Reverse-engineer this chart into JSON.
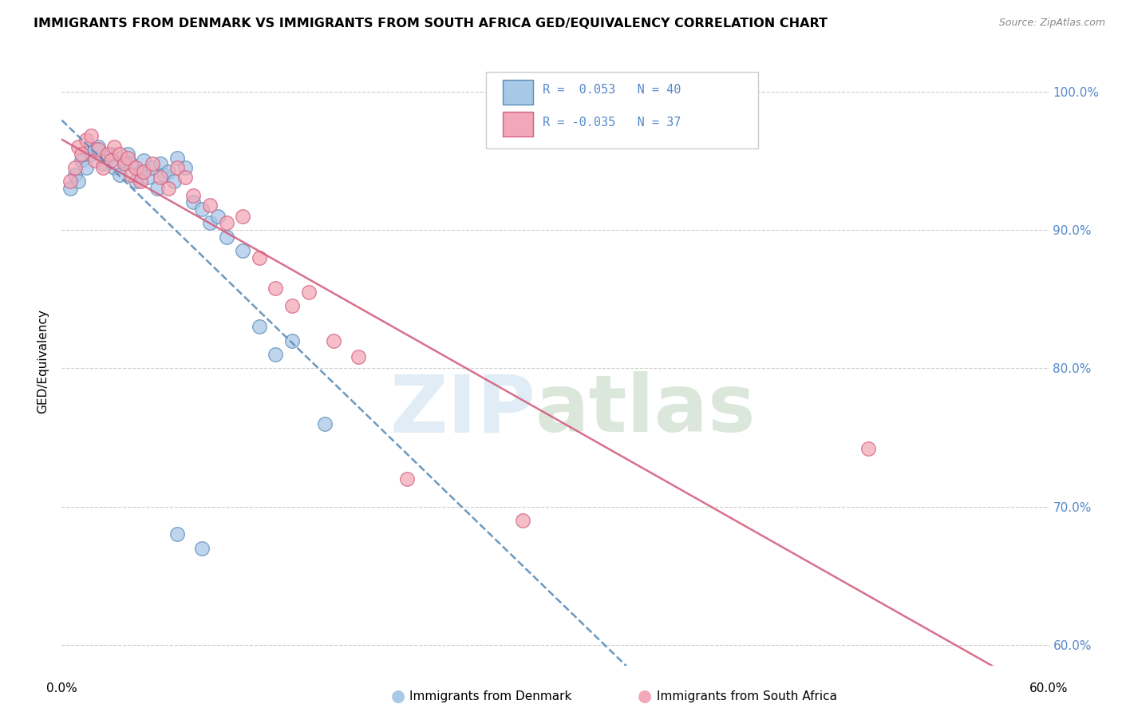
{
  "title": "IMMIGRANTS FROM DENMARK VS IMMIGRANTS FROM SOUTH AFRICA GED/EQUIVALENCY CORRELATION CHART",
  "source": "Source: ZipAtlas.com",
  "ylabel": "GED/Equivalency",
  "ytick_labels": [
    "100.0%",
    "90.0%",
    "80.0%",
    "70.0%",
    "60.0%"
  ],
  "ytick_values": [
    1.0,
    0.9,
    0.8,
    0.7,
    0.6
  ],
  "xlim": [
    0.0,
    0.6
  ],
  "ylim": [
    0.585,
    1.025
  ],
  "color_blue": "#A8C8E8",
  "color_pink": "#F2A8B8",
  "line_blue": "#5B8DB8",
  "line_pink": "#D46080",
  "denmark_x": [
    0.005,
    0.008,
    0.01,
    0.012,
    0.015,
    0.018,
    0.02,
    0.022,
    0.025,
    0.028,
    0.03,
    0.032,
    0.035,
    0.038,
    0.04,
    0.042,
    0.045,
    0.048,
    0.05,
    0.052,
    0.055,
    0.058,
    0.06,
    0.062,
    0.065,
    0.068,
    0.07,
    0.075,
    0.08,
    0.085,
    0.09,
    0.095,
    0.1,
    0.11,
    0.12,
    0.13,
    0.14,
    0.16,
    0.07,
    0.085
  ],
  "denmark_y": [
    0.93,
    0.94,
    0.935,
    0.95,
    0.945,
    0.955,
    0.958,
    0.96,
    0.948,
    0.952,
    0.955,
    0.945,
    0.94,
    0.95,
    0.955,
    0.948,
    0.935,
    0.942,
    0.95,
    0.938,
    0.945,
    0.93,
    0.948,
    0.94,
    0.942,
    0.935,
    0.952,
    0.945,
    0.92,
    0.915,
    0.905,
    0.91,
    0.895,
    0.885,
    0.83,
    0.81,
    0.82,
    0.76,
    0.68,
    0.67
  ],
  "southafrica_x": [
    0.005,
    0.008,
    0.01,
    0.012,
    0.015,
    0.018,
    0.02,
    0.022,
    0.025,
    0.028,
    0.03,
    0.032,
    0.035,
    0.038,
    0.04,
    0.042,
    0.045,
    0.048,
    0.05,
    0.055,
    0.06,
    0.065,
    0.07,
    0.075,
    0.08,
    0.09,
    0.1,
    0.11,
    0.12,
    0.13,
    0.14,
    0.15,
    0.165,
    0.18,
    0.21,
    0.28,
    0.49
  ],
  "southafrica_y": [
    0.935,
    0.945,
    0.96,
    0.955,
    0.965,
    0.968,
    0.95,
    0.958,
    0.945,
    0.955,
    0.95,
    0.96,
    0.955,
    0.948,
    0.952,
    0.94,
    0.945,
    0.935,
    0.942,
    0.948,
    0.938,
    0.93,
    0.945,
    0.938,
    0.925,
    0.918,
    0.905,
    0.91,
    0.88,
    0.858,
    0.845,
    0.855,
    0.82,
    0.808,
    0.72,
    0.69,
    0.742
  ]
}
